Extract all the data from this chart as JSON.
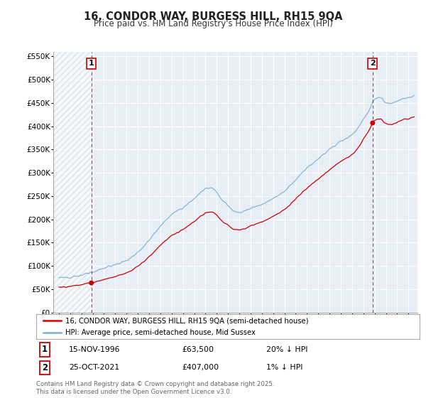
{
  "title": "16, CONDOR WAY, BURGESS HILL, RH15 9QA",
  "subtitle": "Price paid vs. HM Land Registry's House Price Index (HPI)",
  "ylim": [
    0,
    560000
  ],
  "yticks": [
    0,
    50000,
    100000,
    150000,
    200000,
    250000,
    300000,
    350000,
    400000,
    450000,
    500000,
    550000
  ],
  "ytick_labels": [
    "£0",
    "£50K",
    "£100K",
    "£150K",
    "£200K",
    "£250K",
    "£300K",
    "£350K",
    "£400K",
    "£450K",
    "£500K",
    "£550K"
  ],
  "xmin": 1993.5,
  "xmax": 2025.8,
  "sale1_x": 1996.88,
  "sale1_y": 63500,
  "sale2_x": 2021.82,
  "sale2_y": 407000,
  "sale1_date": "15-NOV-1996",
  "sale1_price": "£63,500",
  "sale1_hpi": "20% ↓ HPI",
  "sale2_date": "25-OCT-2021",
  "sale2_price": "£407,000",
  "sale2_hpi": "1% ↓ HPI",
  "legend_line1": "16, CONDOR WAY, BURGESS HILL, RH15 9QA (semi-detached house)",
  "legend_line2": "HPI: Average price, semi-detached house, Mid Sussex",
  "footer": "Contains HM Land Registry data © Crown copyright and database right 2025.\nThis data is licensed under the Open Government Licence v3.0.",
  "sale_color": "#cc0000",
  "hpi_color": "#7bafd4",
  "background_color": "#ffffff",
  "plot_bg_color": "#e8eef5",
  "hatch_color": "#c8d4e0"
}
